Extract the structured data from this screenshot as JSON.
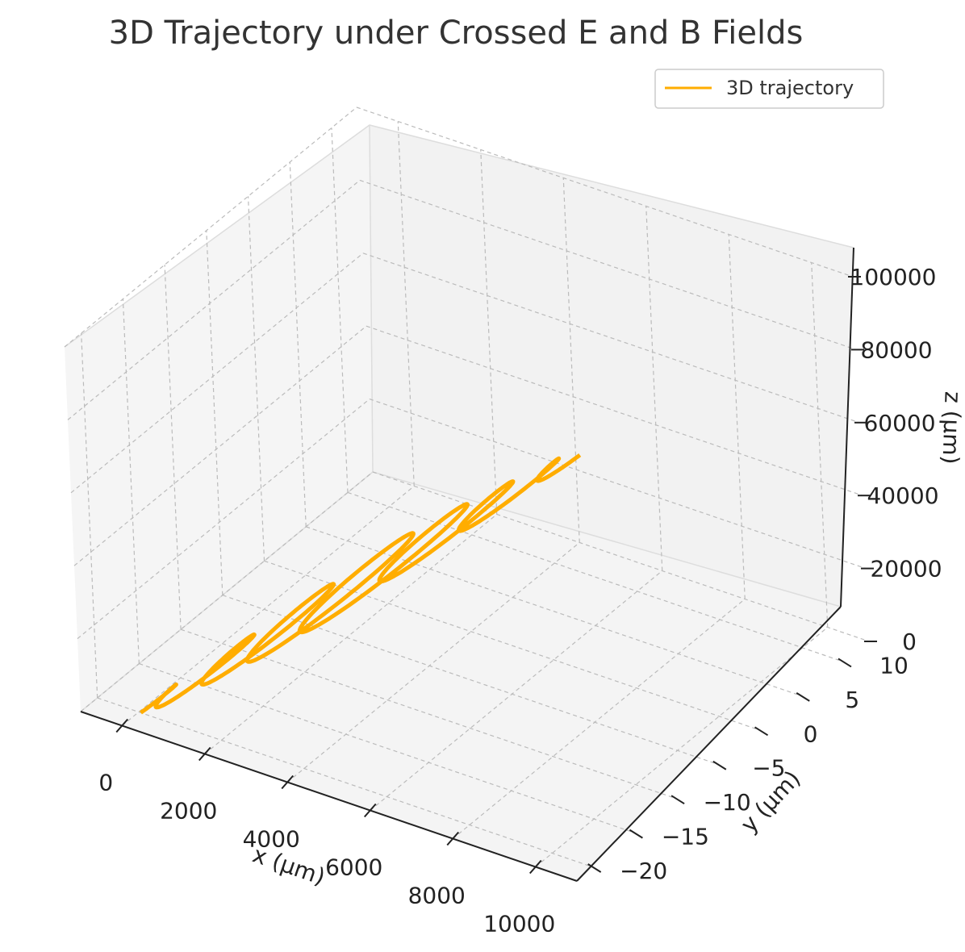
{
  "chart_data": {
    "type": "line",
    "title": "3D Trajectory under Crossed E and B Fields",
    "xlabel": "x (µm)",
    "ylabel": "y (µm)",
    "zlabel": "z (µm)",
    "x_ticks": [
      "0",
      "2000",
      "4000",
      "6000",
      "8000",
      "10000"
    ],
    "y_ticks": [
      "−20",
      "−15",
      "−10",
      "−5",
      "0",
      "5",
      "10"
    ],
    "z_ticks": [
      "0",
      "20000",
      "40000",
      "60000",
      "80000",
      "100000"
    ],
    "xlim": [
      -1000,
      11000
    ],
    "ylim": [
      -22,
      13
    ],
    "zlim": [
      0,
      100000
    ],
    "grid": true,
    "legend_position": "top-right",
    "colors": {
      "trajectory": "#ffad00",
      "pane_back": "#f2f2f2",
      "pane_side": "#f5f5f5",
      "pane_floor": "#f3f3f3"
    },
    "series": [
      {
        "name": "3D trajectory",
        "x": [
          0,
          2000,
          4000,
          6000,
          8000,
          10000
        ],
        "y": [
          -20,
          -19,
          -18,
          -17,
          -16,
          -15
        ],
        "z": [
          0,
          20000,
          40000,
          60000,
          80000,
          100000
        ]
      }
    ]
  }
}
